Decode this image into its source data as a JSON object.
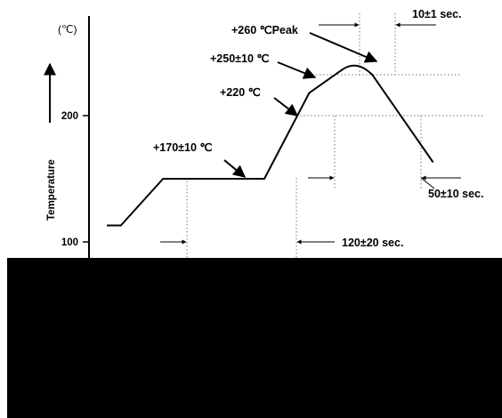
{
  "chart_data": {
    "type": "line",
    "ylabel": "Temperature",
    "yunit": "(℃)",
    "yticks": [
      {
        "value": 100,
        "label": "100"
      },
      {
        "value": 200,
        "label": "200"
      }
    ],
    "profile": [
      {
        "x": 0,
        "y": 113
      },
      {
        "x": 0.5,
        "y": 113
      },
      {
        "x": 2.0,
        "y": 150
      },
      {
        "x": 5.6,
        "y": 150
      },
      {
        "x": 7.2,
        "y": 218
      },
      {
        "x": 8.6,
        "y": 240
      },
      {
        "x": 9.2,
        "y": 240
      },
      {
        "x": 11.6,
        "y": 163
      }
    ],
    "annotations": [
      {
        "id": "peak",
        "text": "+260 ℃Peak"
      },
      {
        "id": "t250",
        "text": "+250±10 ℃"
      },
      {
        "id": "t220",
        "text": "+220 ℃"
      },
      {
        "id": "t170",
        "text": "+170±10 ℃"
      },
      {
        "id": "dur10",
        "text": "10±1 sec."
      },
      {
        "id": "dur50",
        "text": "50±10 sec."
      },
      {
        "id": "dur120",
        "text": "120±20 sec."
      }
    ]
  }
}
